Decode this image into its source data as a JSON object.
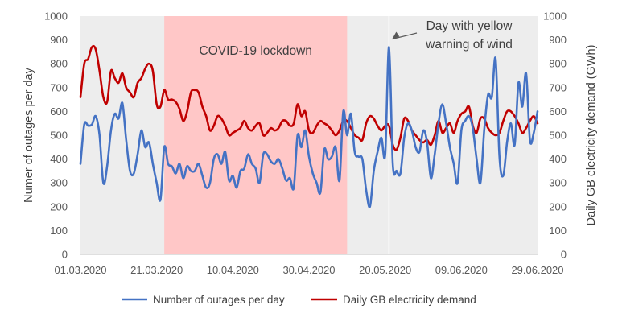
{
  "chart_data": {
    "type": "line",
    "title": "",
    "xlabel": "",
    "ylabel": "Numer of outages per day",
    "y2label": "Daily GB electricity demand (GWh)",
    "ylim": [
      0,
      1000
    ],
    "y2lim": [
      0,
      1000
    ],
    "y_ticks": [
      "0",
      "100",
      "200",
      "300",
      "400",
      "500",
      "600",
      "700",
      "800",
      "900",
      "1000"
    ],
    "y2_ticks": [
      "0",
      "100",
      "200",
      "300",
      "400",
      "500",
      "600",
      "700",
      "800",
      "900",
      "1000"
    ],
    "x_ticks": [
      "01.03.2020",
      "21.03.2020",
      "10.04.2020",
      "30.04.2020",
      "20.05.2020",
      "09.06.2020",
      "29.06.2020"
    ],
    "x_range_days": [
      0,
      120
    ],
    "grid": false,
    "legend_position": "bottom",
    "shaded_regions": [
      {
        "label": "COVID-19 lockdown",
        "start": "23.03.2020",
        "end": "10.05.2020",
        "color": "#ffc7c7"
      }
    ],
    "annotations": [
      {
        "lines": [
          "Day with yellow",
          "warning of wind"
        ],
        "points_to": "21.05.2020",
        "value": 870
      }
    ],
    "series": [
      {
        "name": "Number of outages per day",
        "color": "#4472c4",
        "axis": "left",
        "values": [
          380,
          545,
          540,
          545,
          580,
          500,
          300,
          370,
          520,
          590,
          570,
          635,
          480,
          350,
          340,
          420,
          520,
          450,
          470,
          380,
          300,
          230,
          450,
          380,
          370,
          340,
          380,
          320,
          370,
          350,
          350,
          380,
          330,
          280,
          300,
          400,
          420,
          380,
          430,
          310,
          330,
          280,
          350,
          360,
          420,
          380,
          360,
          300,
          420,
          420,
          390,
          380,
          400,
          360,
          310,
          320,
          280,
          500,
          450,
          520,
          410,
          340,
          300,
          260,
          440,
          400,
          410,
          450,
          310,
          600,
          500,
          590,
          430,
          410,
          400,
          270,
          200,
          350,
          430,
          490,
          420,
          870,
          380,
          350,
          340,
          490,
          550,
          520,
          450,
          430,
          520,
          470,
          320,
          420,
          550,
          630,
          550,
          450,
          380,
          300,
          520,
          560,
          580,
          530,
          400,
          300,
          520,
          670,
          660,
          820,
          410,
          330,
          470,
          550,
          460,
          720,
          620,
          760,
          480,
          510,
          600
        ]
      },
      {
        "name": "Daily GB electricity demand",
        "color": "#c00000",
        "axis": "right",
        "values": [
          660,
          800,
          820,
          870,
          860,
          770,
          660,
          640,
          770,
          740,
          720,
          760,
          700,
          680,
          660,
          720,
          740,
          780,
          800,
          770,
          630,
          620,
          690,
          650,
          650,
          640,
          610,
          560,
          600,
          680,
          690,
          680,
          620,
          580,
          520,
          540,
          580,
          570,
          540,
          500,
          510,
          520,
          530,
          560,
          530,
          520,
          540,
          550,
          500,
          510,
          530,
          520,
          530,
          560,
          560,
          540,
          550,
          630,
          580,
          600,
          520,
          510,
          540,
          560,
          550,
          540,
          520,
          500,
          520,
          560,
          560,
          530,
          500,
          490,
          480,
          550,
          580,
          570,
          540,
          520,
          540,
          540,
          460,
          440,
          490,
          570,
          560,
          520,
          500,
          480,
          470,
          480,
          460,
          500,
          560,
          510,
          530,
          550,
          510,
          560,
          590,
          600,
          620,
          540,
          510,
          570,
          570,
          530,
          510,
          500,
          510,
          560,
          600,
          600,
          580,
          550,
          510,
          530,
          560,
          580,
          550
        ]
      }
    ]
  },
  "legend": {
    "series_1_label": "Number of outages per day",
    "series_2_label": "Daily GB electricity demand"
  }
}
